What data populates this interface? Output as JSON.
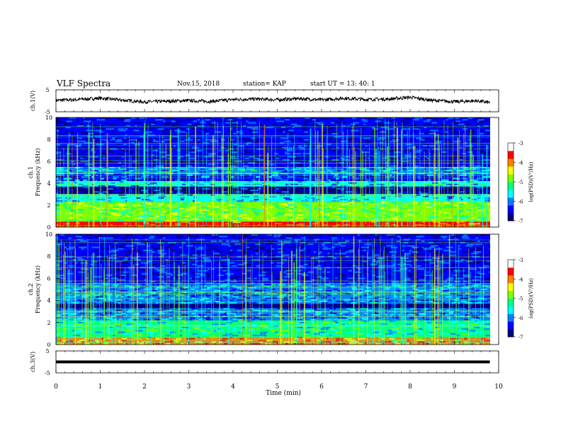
{
  "header": {
    "title": "VLF Spectra",
    "date": "Nov.15, 2018",
    "station": "station= KAP",
    "start": "start  UT =   13: 40: 1"
  },
  "chart_data": [
    {
      "type": "line",
      "panel": "ch1-waveform",
      "ylabel": "ch.1(V)",
      "ylim": [
        -5,
        5
      ],
      "yticks": [
        "5",
        "-5"
      ],
      "x": [
        0,
        0.5,
        1,
        1.5,
        2,
        2.5,
        3,
        3.5,
        4,
        4.5,
        5,
        5.5,
        6,
        6.5,
        7,
        7.5,
        8,
        8.5,
        9,
        9.5,
        9.8
      ],
      "y": [
        0.2,
        0.6,
        1.2,
        0.3,
        -0.5,
        -0.2,
        0.1,
        -0.3,
        0.6,
        0.8,
        0.5,
        1.0,
        0.4,
        1.2,
        0.6,
        0.8,
        1.6,
        0.2,
        -0.4,
        0.0,
        -0.8
      ]
    },
    {
      "type": "heatmap",
      "panel": "ch1-spectrogram",
      "ylabel_top": "ch.1",
      "ylabel": "Frequency  (kHz)",
      "ylim": [
        0,
        10
      ],
      "yticks": [
        "0",
        "2",
        "4",
        "6",
        "8",
        "10"
      ],
      "colorbar": {
        "label": "log(PSD)(V²/Hz)",
        "range": [
          -7,
          -3
        ],
        "ticks": [
          "-3",
          "-4",
          "-5",
          "-6",
          "-7"
        ]
      },
      "band_intensity_by_kHz": [
        {
          "from": 0,
          "to": 0.5,
          "level": -3.2
        },
        {
          "from": 0.5,
          "to": 2.3,
          "level": -4.7
        },
        {
          "from": 2.3,
          "to": 3.0,
          "level": -5.6
        },
        {
          "from": 3.0,
          "to": 3.7,
          "level": -6.6
        },
        {
          "from": 3.7,
          "to": 4.2,
          "level": -5.6
        },
        {
          "from": 4.2,
          "to": 4.8,
          "level": -6.2
        },
        {
          "from": 4.8,
          "to": 5.5,
          "level": -5.7
        },
        {
          "from": 5.5,
          "to": 10,
          "level": -6.5
        }
      ]
    },
    {
      "type": "heatmap",
      "panel": "ch2-spectrogram",
      "ylabel_top": "ch.2",
      "ylabel": "Frequency  (kHz)",
      "ylim": [
        0,
        10
      ],
      "yticks": [
        "0",
        "2",
        "4",
        "6",
        "8",
        "10"
      ],
      "colorbar": {
        "label": "log(PSD)(V²/Hz)",
        "range": [
          -7,
          -3
        ],
        "ticks": [
          "-3",
          "-4",
          "-5",
          "-6",
          "-7"
        ]
      },
      "band_intensity_by_kHz": [
        {
          "from": 0,
          "to": 0.6,
          "level": -3.8
        },
        {
          "from": 0.6,
          "to": 2.2,
          "level": -5.2
        },
        {
          "from": 2.2,
          "to": 3.3,
          "level": -5.9
        },
        {
          "from": 3.3,
          "to": 3.7,
          "level": -6.9
        },
        {
          "from": 3.7,
          "to": 5.5,
          "level": -5.9
        },
        {
          "from": 5.5,
          "to": 10,
          "level": -6.4
        }
      ]
    },
    {
      "type": "line",
      "panel": "ch3-waveform",
      "ylabel": "ch.3(V)",
      "ylim": [
        -5,
        5
      ],
      "yticks": [
        "5",
        "-5"
      ],
      "x": [
        0,
        9.8
      ],
      "y": [
        0,
        0
      ]
    }
  ],
  "x_axis": {
    "label": "Time  (min)",
    "range": [
      0,
      10
    ],
    "ticks": [
      "0",
      "1",
      "2",
      "3",
      "4",
      "5",
      "6",
      "7",
      "8",
      "9",
      "10"
    ]
  },
  "colormap": [
    "#00007f",
    "#0000ff",
    "#0080ff",
    "#00ffff",
    "#00ff80",
    "#80ff00",
    "#ffff00",
    "#ff8000",
    "#ff0000",
    "#ffffff"
  ]
}
